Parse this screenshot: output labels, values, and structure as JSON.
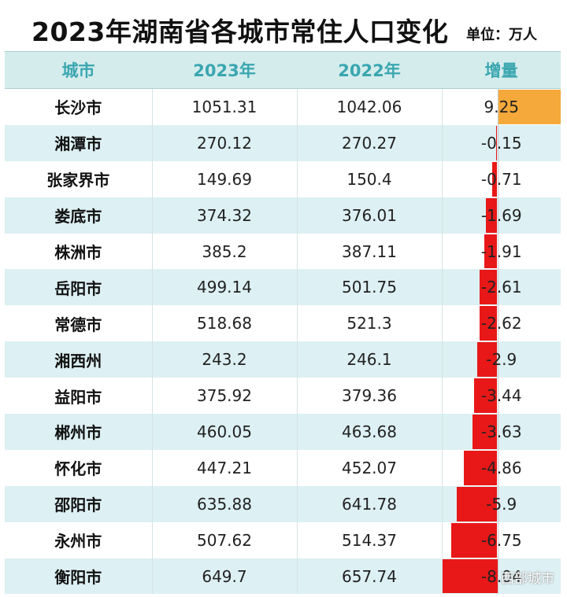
{
  "header": {
    "title": "2023年湖南省各城市常住人口变化",
    "unit": "单位：万人"
  },
  "table": {
    "columns": [
      "城市",
      "2023年",
      "2022年",
      "增量"
    ],
    "rows": [
      {
        "city": "长沙市",
        "y2023": "1051.31",
        "y2022": "1042.06",
        "inc": "9.25",
        "value": 9.25
      },
      {
        "city": "湘潭市",
        "y2023": "270.12",
        "y2022": "270.27",
        "inc": "-0.15",
        "value": -0.15
      },
      {
        "city": "张家界市",
        "y2023": "149.69",
        "y2022": "150.4",
        "inc": "-0.71",
        "value": -0.71
      },
      {
        "city": "娄底市",
        "y2023": "374.32",
        "y2022": "376.01",
        "inc": "-1.69",
        "value": -1.69
      },
      {
        "city": "株洲市",
        "y2023": "385.2",
        "y2022": "387.11",
        "inc": "-1.91",
        "value": -1.91
      },
      {
        "city": "岳阳市",
        "y2023": "499.14",
        "y2022": "501.75",
        "inc": "-2.61",
        "value": -2.61
      },
      {
        "city": "常德市",
        "y2023": "518.68",
        "y2022": "521.3",
        "inc": "-2.62",
        "value": -2.62
      },
      {
        "city": "湘西州",
        "y2023": "243.2",
        "y2022": "246.1",
        "inc": "-2.9",
        "value": -2.9
      },
      {
        "city": "益阳市",
        "y2023": "375.92",
        "y2022": "379.36",
        "inc": "-3.44",
        "value": -3.44
      },
      {
        "city": "郴州市",
        "y2023": "460.05",
        "y2022": "463.68",
        "inc": "-3.63",
        "value": -3.63
      },
      {
        "city": "怀化市",
        "y2023": "447.21",
        "y2022": "452.07",
        "inc": "-4.86",
        "value": -4.86
      },
      {
        "city": "邵阳市",
        "y2023": "635.88",
        "y2022": "641.78",
        "inc": "-5.9",
        "value": -5.9
      },
      {
        "city": "永州市",
        "y2023": "507.62",
        "y2022": "514.37",
        "inc": "-6.75",
        "value": -6.75
      },
      {
        "city": "衡阳市",
        "y2023": "649.7",
        "y2022": "657.74",
        "inc": "-8.04",
        "value": -8.04
      }
    ]
  },
  "colors": {
    "positive_bar": "#f5a93a",
    "negative_bar": "#e81818",
    "header_bg": "#d4ecec",
    "header_text": "#3aa6b0",
    "stripe": "#ddf0f3"
  },
  "watermark": "西部城市"
}
